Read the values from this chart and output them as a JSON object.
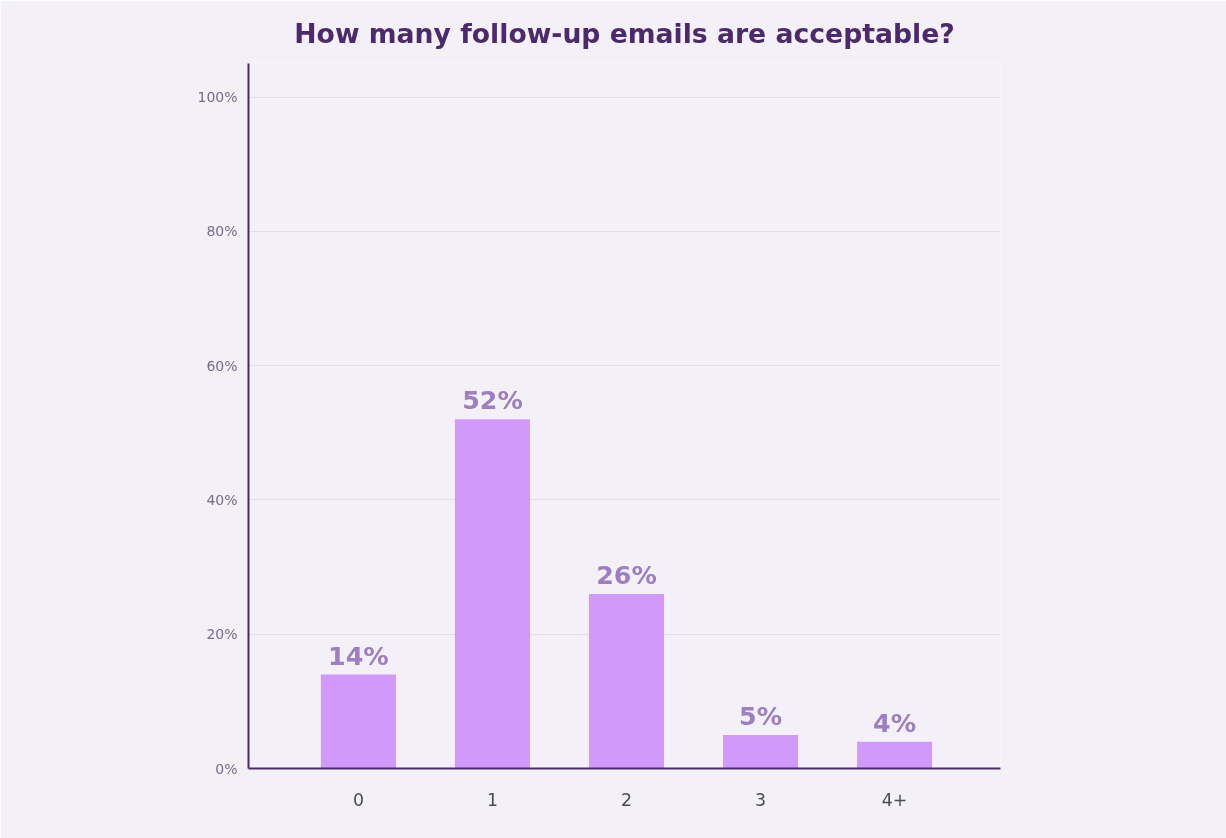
{
  "chart_data": {
    "type": "bar",
    "title": "How many follow-up emails are acceptable?",
    "categories": [
      "0",
      "1",
      "2",
      "3",
      "4+"
    ],
    "values": [
      14,
      52,
      26,
      5,
      4
    ],
    "color": "#d199fa",
    "value_labels": [
      "14%",
      "52%",
      "26%",
      "5%",
      "4%"
    ],
    "ylim": [
      0,
      105
    ],
    "yticks": [
      {
        "value": 0,
        "label": "0%"
      },
      {
        "value": 20,
        "label": "20%"
      },
      {
        "value": 40,
        "label": "40%"
      },
      {
        "value": 60,
        "label": "60%"
      },
      {
        "value": 80,
        "label": "80%"
      },
      {
        "value": 100,
        "label": "100%"
      }
    ],
    "grid": "y"
  }
}
